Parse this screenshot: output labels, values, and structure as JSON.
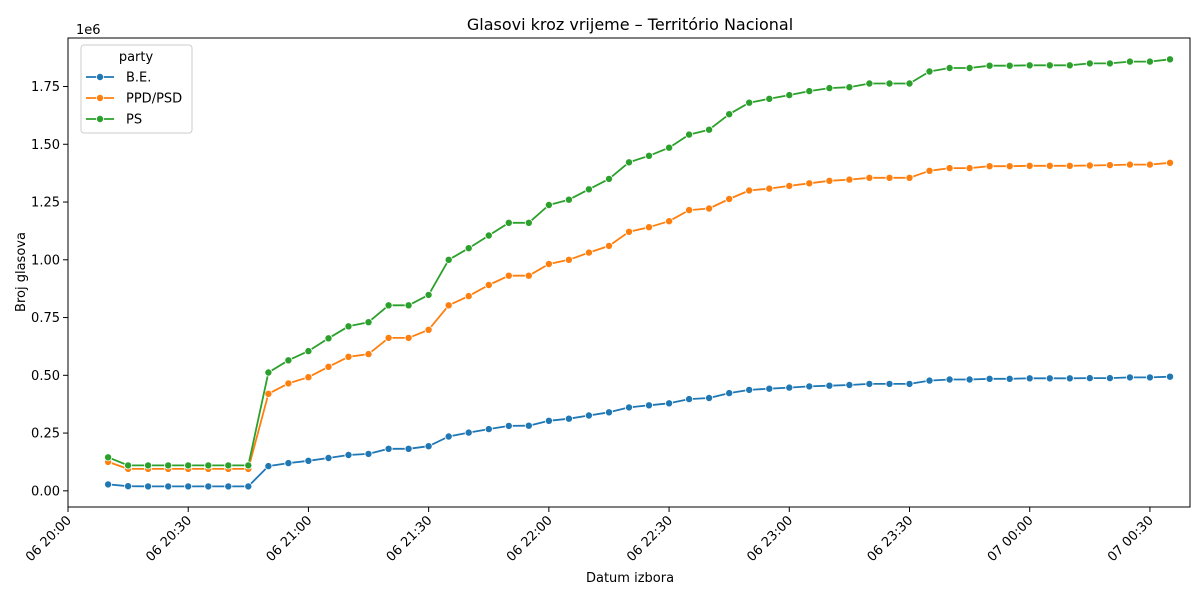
{
  "chart_data": {
    "type": "line",
    "title": "Glasovi kroz vrijeme – Território Nacional",
    "xlabel": "Datum izbora",
    "ylabel": "Broj glasova",
    "y_scale_label": "1e6",
    "y_scale": 1000000,
    "ylim": [
      -70000,
      1960000
    ],
    "xlim": [
      "06 20:00",
      "07 00:40"
    ],
    "grid": false,
    "legend": {
      "title": "party",
      "placement": "top-left"
    },
    "x_ticks": [
      "06 20:00",
      "06 20:30",
      "06 21:00",
      "06 21:30",
      "06 22:00",
      "06 22:30",
      "06 23:00",
      "06 23:30",
      "07 00:00",
      "07 00:30"
    ],
    "y_ticks": [
      "0.00",
      "0.25",
      "0.50",
      "0.75",
      "1.00",
      "1.25",
      "1.50",
      "1.75"
    ],
    "x": [
      "06 20:10",
      "06 20:15",
      "06 20:20",
      "06 20:25",
      "06 20:30",
      "06 20:35",
      "06 20:40",
      "06 20:45",
      "06 20:50",
      "06 20:55",
      "06 21:00",
      "06 21:05",
      "06 21:10",
      "06 21:15",
      "06 21:20",
      "06 21:25",
      "06 21:30",
      "06 21:35",
      "06 21:40",
      "06 21:45",
      "06 21:50",
      "06 21:55",
      "06 22:00",
      "06 22:05",
      "06 22:10",
      "06 22:15",
      "06 22:20",
      "06 22:25",
      "06 22:30",
      "06 22:35",
      "06 22:40",
      "06 22:45",
      "06 22:50",
      "06 22:55",
      "06 23:00",
      "06 23:05",
      "06 23:10",
      "06 23:15",
      "06 23:20",
      "06 23:25",
      "06 23:30",
      "06 23:35",
      "06 23:40",
      "06 23:45",
      "06 23:50",
      "06 23:55",
      "07 00:00",
      "07 00:05",
      "07 00:10",
      "07 00:15",
      "07 00:20",
      "07 00:25",
      "07 00:30",
      "07 00:35"
    ],
    "series": [
      {
        "name": "B.E.",
        "color": "#1f77b4",
        "values": [
          28000,
          20000,
          19000,
          19000,
          19000,
          19000,
          19000,
          19000,
          107000,
          120000,
          130000,
          142000,
          155000,
          160000,
          182000,
          182000,
          193000,
          235000,
          252000,
          267000,
          281000,
          282000,
          303000,
          312000,
          326000,
          340000,
          361000,
          370000,
          379000,
          397000,
          402000,
          423000,
          437000,
          442000,
          447000,
          452000,
          455000,
          458000,
          463000,
          463000,
          463000,
          477000,
          482000,
          482000,
          485000,
          485000,
          487000,
          487000,
          487000,
          488000,
          488000,
          491000,
          491000,
          494000
        ]
      },
      {
        "name": "PPD/PSD",
        "color": "#ff7f0e",
        "values": [
          125000,
          95000,
          95000,
          95000,
          95000,
          95000,
          95000,
          95000,
          420000,
          465000,
          492000,
          537000,
          580000,
          592000,
          662000,
          662000,
          697000,
          803000,
          843000,
          891000,
          931000,
          931000,
          982000,
          1000000,
          1031000,
          1060000,
          1121000,
          1141000,
          1167000,
          1215000,
          1222000,
          1263000,
          1300000,
          1308000,
          1320000,
          1331000,
          1342000,
          1347000,
          1355000,
          1355000,
          1355000,
          1385000,
          1397000,
          1397000,
          1405000,
          1405000,
          1407000,
          1407000,
          1407000,
          1408000,
          1410000,
          1412000,
          1412000,
          1420000
        ]
      },
      {
        "name": "PS",
        "color": "#2ca02c",
        "values": [
          145000,
          110000,
          110000,
          110000,
          110000,
          110000,
          110000,
          110000,
          512000,
          565000,
          605000,
          660000,
          712000,
          730000,
          803000,
          803000,
          848000,
          1000000,
          1050000,
          1105000,
          1160000,
          1160000,
          1237000,
          1260000,
          1305000,
          1350000,
          1422000,
          1450000,
          1485000,
          1542000,
          1563000,
          1630000,
          1680000,
          1697000,
          1713000,
          1730000,
          1743000,
          1747000,
          1763000,
          1763000,
          1763000,
          1815000,
          1830000,
          1830000,
          1840000,
          1840000,
          1842000,
          1842000,
          1842000,
          1850000,
          1850000,
          1858000,
          1858000,
          1868000
        ]
      }
    ]
  }
}
